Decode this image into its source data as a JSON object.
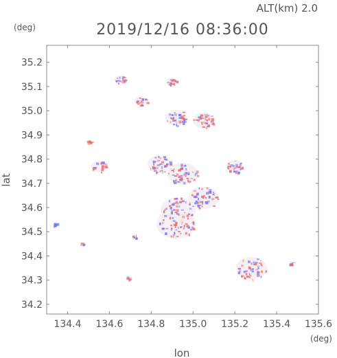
{
  "header": {
    "altitude": "ALT(km) 2.0",
    "datetime": "2019/12/16 08:36:00",
    "unit_y": "(deg)",
    "unit_x": "(deg)"
  },
  "chart_data": {
    "type": "heatmap",
    "title": "2019/12/16 08:36:00",
    "subtitle": "ALT(km) 2.0",
    "xlabel": "lon",
    "ylabel": "lat",
    "xlim": [
      134.3,
      135.6
    ],
    "ylim": [
      34.16,
      35.27
    ],
    "xticks": [
      "134.4",
      "134.6",
      "134.8",
      "135.0",
      "135.2",
      "135.4",
      "135.6"
    ],
    "yticks": [
      "34.2",
      "34.3",
      "34.4",
      "34.5",
      "34.6",
      "34.7",
      "34.8",
      "34.9",
      "35.0",
      "35.1",
      "35.2"
    ],
    "grid": false,
    "colors": {
      "positive": "#f06a6a",
      "negative": "#7a7af0",
      "neutral": "#f3eef3",
      "frame": "#888888"
    },
    "clusters": [
      {
        "lon": 134.84,
        "lat": 34.78,
        "r": 0.055,
        "sign": "mixed"
      },
      {
        "lon": 134.55,
        "lat": 34.77,
        "r": 0.035,
        "sign": "positive"
      },
      {
        "lon": 134.95,
        "lat": 34.74,
        "r": 0.07,
        "sign": "mixed"
      },
      {
        "lon": 135.2,
        "lat": 34.77,
        "r": 0.04,
        "sign": "mixed"
      },
      {
        "lon": 134.92,
        "lat": 34.53,
        "r": 0.09,
        "sign": "mixed"
      },
      {
        "lon": 134.93,
        "lat": 34.59,
        "r": 0.08,
        "sign": "mixed"
      },
      {
        "lon": 135.05,
        "lat": 34.64,
        "r": 0.07,
        "sign": "mixed"
      },
      {
        "lon": 135.28,
        "lat": 34.35,
        "r": 0.07,
        "sign": "mixed"
      },
      {
        "lon": 134.92,
        "lat": 34.97,
        "r": 0.05,
        "sign": "mixed"
      },
      {
        "lon": 135.05,
        "lat": 34.96,
        "r": 0.05,
        "sign": "positive"
      },
      {
        "lon": 134.75,
        "lat": 35.04,
        "r": 0.03,
        "sign": "mixed"
      },
      {
        "lon": 134.9,
        "lat": 35.12,
        "r": 0.025,
        "sign": "positive"
      },
      {
        "lon": 134.65,
        "lat": 35.13,
        "r": 0.025,
        "sign": "mixed"
      },
      {
        "lon": 134.34,
        "lat": 34.53,
        "r": 0.012,
        "sign": "negative"
      },
      {
        "lon": 134.5,
        "lat": 34.87,
        "r": 0.012,
        "sign": "positive"
      },
      {
        "lon": 134.69,
        "lat": 34.31,
        "r": 0.01,
        "sign": "positive"
      },
      {
        "lon": 135.47,
        "lat": 34.37,
        "r": 0.012,
        "sign": "positive"
      },
      {
        "lon": 134.72,
        "lat": 34.48,
        "r": 0.012,
        "sign": "mixed"
      },
      {
        "lon": 134.47,
        "lat": 34.45,
        "r": 0.01,
        "sign": "mixed"
      }
    ]
  }
}
